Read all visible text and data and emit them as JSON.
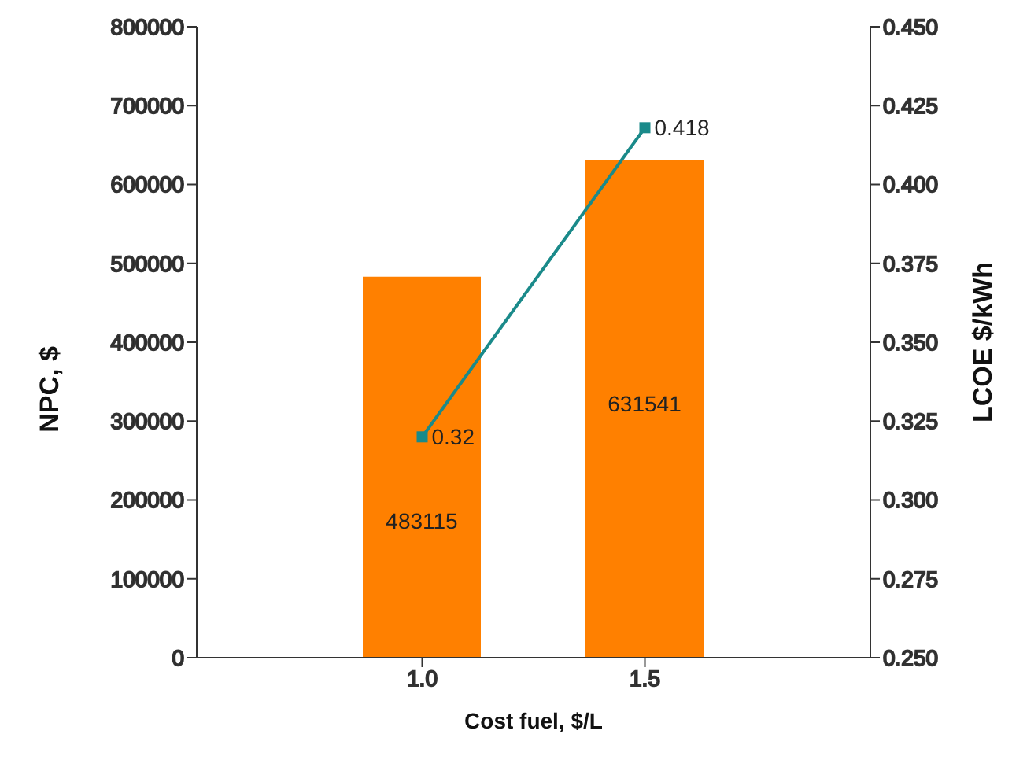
{
  "chart_data": {
    "type": "bar",
    "categories": [
      "1.0",
      "1.5"
    ],
    "xlabel": "Cost fuel, $/L",
    "ylabel": "NPC, $",
    "y2label": "LCOE $/kWh",
    "series": [
      {
        "color": "#ff8000",
        "values": [
          483115,
          631541
        ]
      },
      {
        "type": "line",
        "axis": "y2",
        "color": "#1a8a8a",
        "marker": "square",
        "values": [
          0.32,
          0.418
        ]
      }
    ],
    "ylim": [
      0,
      800000
    ],
    "yticks": [
      0,
      100000,
      200000,
      300000,
      400000,
      500000,
      600000,
      700000,
      800000
    ],
    "y2lim": [
      0.25,
      0.45
    ],
    "y2ticks": [
      {
        "value": 0.25,
        "label": "0.250"
      },
      {
        "value": 0.275,
        "label": "0.275"
      },
      {
        "value": 0.3,
        "label": "0.300"
      },
      {
        "value": 0.325,
        "label": "0.325"
      },
      {
        "value": 0.35,
        "label": "0.350"
      },
      {
        "value": 0.375,
        "label": "0.375"
      },
      {
        "value": 0.4,
        "label": "0.400"
      },
      {
        "value": 0.425,
        "label": "0.425"
      },
      {
        "value": 0.45,
        "label": "0.450"
      }
    ],
    "data_labels": true,
    "grid": false,
    "legend": false
  }
}
